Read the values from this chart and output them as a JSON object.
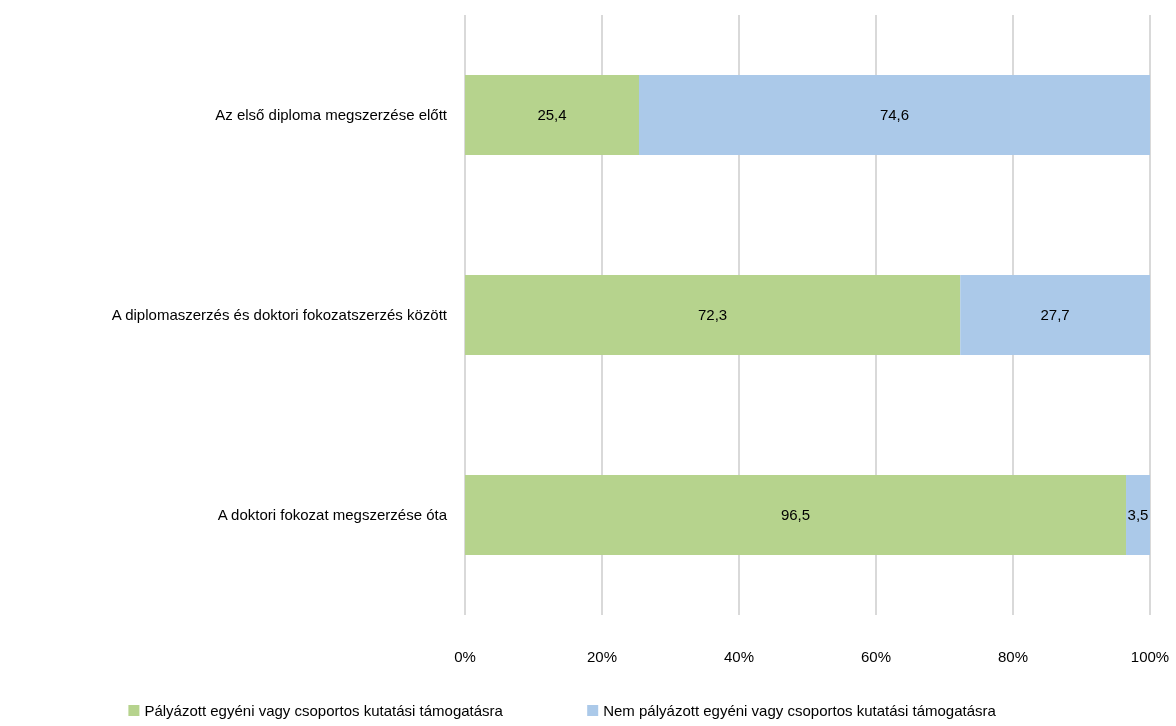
{
  "chart_data": {
    "type": "bar",
    "orientation": "horizontal",
    "stacked": true,
    "categories": [
      "Az első diploma megszerzése előtt",
      "A diplomaszerzés és doktori fokozatszerzés között",
      "A doktori fokozat megszerzése óta"
    ],
    "series": [
      {
        "name": "Pályázott egyéni vagy csoportos kutatási támogatásra",
        "color": "#b6d38d",
        "values": [
          25.4,
          72.3,
          96.5
        ],
        "value_labels": [
          "25,4",
          "72,3",
          "96,5"
        ]
      },
      {
        "name": "Nem pályázott egyéni vagy csoportos kutatási támogatásra",
        "color": "#abc9e9",
        "values": [
          74.6,
          27.7,
          3.5
        ],
        "value_labels": [
          "74,6",
          "27,7",
          "3,5"
        ]
      }
    ],
    "xlim": [
      0,
      100
    ],
    "xticks": [
      {
        "value": 0,
        "label": "0%"
      },
      {
        "value": 20,
        "label": "20%"
      },
      {
        "value": 40,
        "label": "40%"
      },
      {
        "value": 60,
        "label": "60%"
      },
      {
        "value": 80,
        "label": "80%"
      },
      {
        "value": 100,
        "label": "100%"
      }
    ],
    "grid": "x",
    "legend": "bottom"
  }
}
